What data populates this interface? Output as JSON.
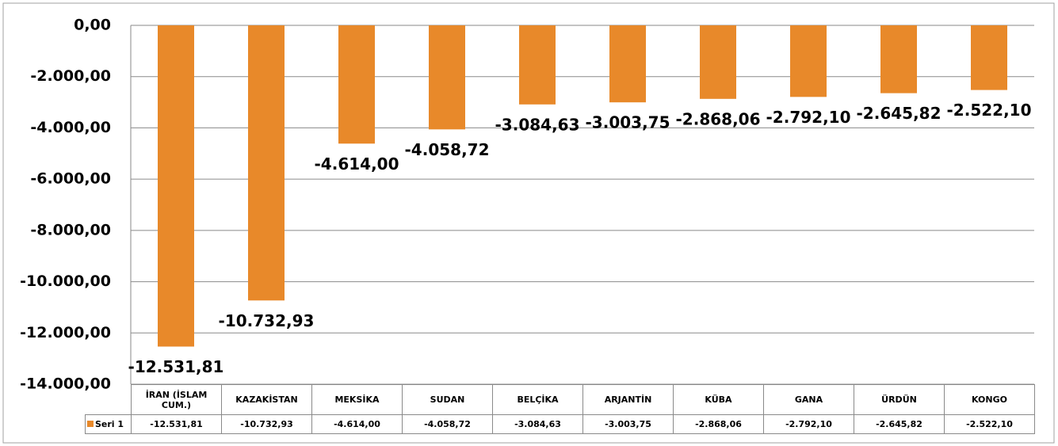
{
  "chart_data": {
    "type": "bar",
    "categories": [
      "İRAN (İSLAM CUM.)",
      "KAZAKİSTAN",
      "MEKSİKA",
      "SUDAN",
      "BELÇİKA",
      "ARJANTİN",
      "KÜBA",
      "GANA",
      "ÜRDÜN",
      "KONGO"
    ],
    "series": [
      {
        "name": "Seri 1",
        "color": "#e8892a",
        "values": [
          -12531.81,
          -10732.93,
          -4614.0,
          -4058.72,
          -3084.63,
          -3003.75,
          -2868.06,
          -2792.1,
          -2645.82,
          -2522.1
        ],
        "value_labels": [
          "-12.531,81",
          "-10.732,93",
          "-4.614,00",
          "-4.058,72",
          "-3.084,63",
          "-3.003,75",
          "-2.868,06",
          "-2.792,10",
          "-2.645,82",
          "-2.522,10"
        ]
      }
    ],
    "ylim": [
      -14000,
      0
    ],
    "yticks": [
      {
        "value": 0,
        "label": "0,00"
      },
      {
        "value": -2000,
        "label": "-2.000,00"
      },
      {
        "value": -4000,
        "label": "-4.000,00"
      },
      {
        "value": -6000,
        "label": "-6.000,00"
      },
      {
        "value": -8000,
        "label": "-8.000,00"
      },
      {
        "value": -10000,
        "label": "-10.000,00"
      },
      {
        "value": -12000,
        "label": "-12.000,00"
      },
      {
        "value": -14000,
        "label": "-14.000,00"
      }
    ],
    "grid": true
  }
}
